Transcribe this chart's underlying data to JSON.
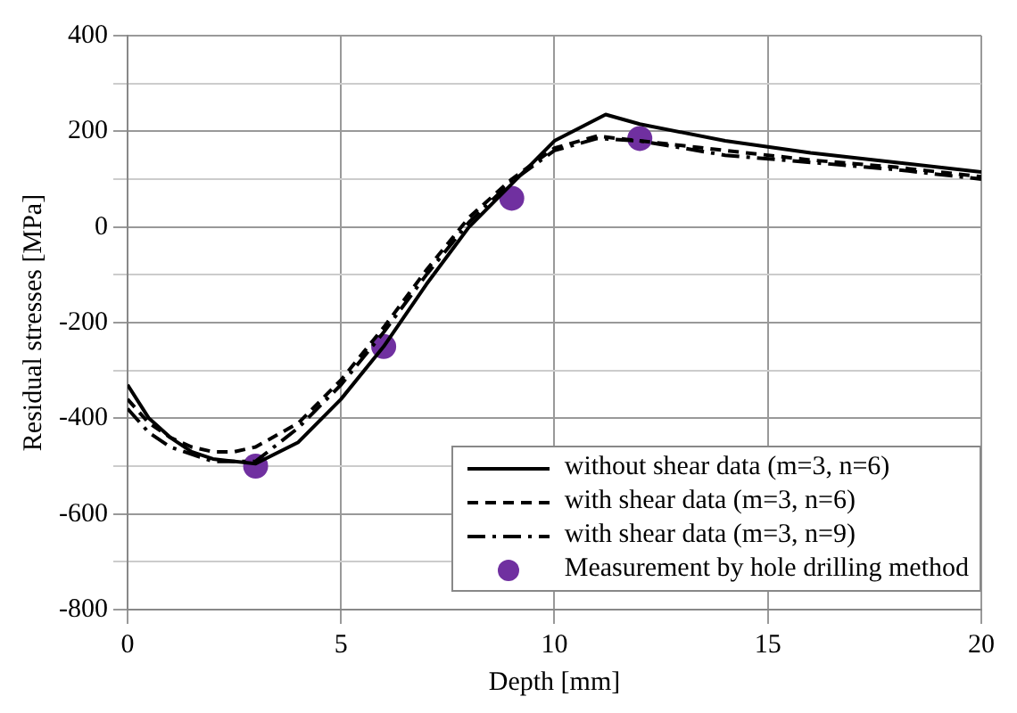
{
  "chart_data": {
    "type": "line",
    "xlabel": "Depth [mm]",
    "ylabel": "Residual stresses [MPa]",
    "xlim": [
      0,
      20
    ],
    "xticks": [
      0,
      5,
      10,
      15,
      20
    ],
    "ylim": [
      -800,
      400
    ],
    "yticks": [
      -800,
      {
        "value": -700,
        "label": null
      },
      -600,
      {
        "value": -500,
        "label": null
      },
      -400,
      {
        "value": -300,
        "label": null
      },
      -200,
      {
        "value": -100,
        "label": null
      },
      0,
      {
        "value": 100,
        "label": null
      },
      200,
      {
        "value": 300,
        "label": null
      },
      400
    ],
    "grid": true,
    "legend": "bottom right",
    "series": [
      {
        "name": "without shear data (m=3, n=6)",
        "color": "#000000",
        "line_style": "solid",
        "marker": "none",
        "x": [
          0,
          0.5,
          1,
          1.5,
          2,
          3,
          4,
          5,
          6,
          7,
          8,
          9,
          10,
          11.2,
          12,
          14,
          16,
          18,
          20
        ],
        "values": [
          -330,
          -400,
          -440,
          -470,
          -485,
          -495,
          -450,
          -360,
          -250,
          -120,
          0,
          90,
          180,
          235,
          215,
          180,
          155,
          135,
          115
        ]
      },
      {
        "name": "with shear data (m=3, n=6)",
        "color": "#000000",
        "line_style": "dashed",
        "marker": "none",
        "x": [
          0,
          0.5,
          1,
          1.5,
          2,
          2.5,
          3,
          4,
          5,
          6,
          7,
          8,
          9,
          10,
          11,
          12,
          14,
          16,
          18,
          20
        ],
        "values": [
          -360,
          -410,
          -440,
          -460,
          -470,
          -470,
          -460,
          -410,
          -320,
          -210,
          -90,
          20,
          100,
          165,
          190,
          180,
          160,
          140,
          125,
          105
        ]
      },
      {
        "name": "with shear data (m=3, n=9)",
        "color": "#000000",
        "line_style": "dashdot",
        "marker": "none",
        "x": [
          0,
          0.5,
          1,
          2,
          3,
          4,
          5,
          6,
          7,
          8,
          9,
          10,
          11,
          12,
          14,
          16,
          18,
          20
        ],
        "values": [
          -380,
          -430,
          -460,
          -490,
          -490,
          -420,
          -330,
          -220,
          -100,
          10,
          95,
          160,
          185,
          180,
          150,
          135,
          120,
          100
        ]
      },
      {
        "name": "Measurement by hole drilling method",
        "type": "scatter",
        "color": "#7030a0",
        "marker": "circle",
        "x": [
          3,
          6,
          9,
          12
        ],
        "values": [
          -500,
          -250,
          60,
          185
        ]
      }
    ]
  }
}
